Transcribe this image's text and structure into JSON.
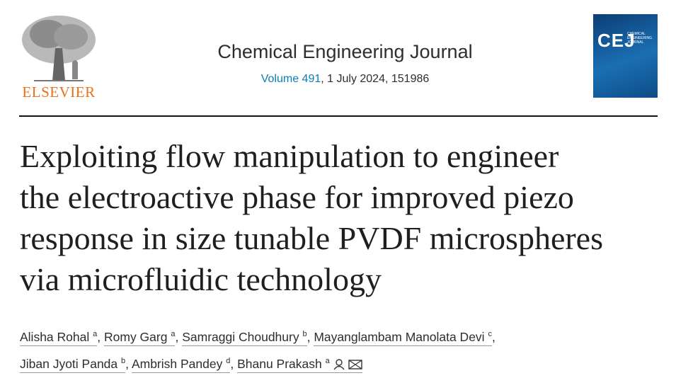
{
  "header": {
    "publisher": "ELSEVIER",
    "journal": "Chemical Engineering Journal",
    "volume": "Volume 491",
    "issue_info": ", 1 July 2024, 151986",
    "cover": {
      "abbr": "CEJ",
      "name": "CHEMICAL ENGINEERING JOURNAL"
    }
  },
  "article": {
    "title_lines": [
      "Exploiting flow manipulation to engineer",
      "the electroactive phase for improved piezo",
      "response in size tunable PVDF microspheres",
      "via microfluidic technology"
    ],
    "separator": ",",
    "author_lines": [
      [
        {
          "name": "Alisha Rohal",
          "affiliation": "a"
        },
        {
          "name": "Romy Garg",
          "affiliation": "a"
        },
        {
          "name": "Samraggi Choudhury",
          "affiliation": "b"
        },
        {
          "name": "Mayanglambam Manolata Devi",
          "affiliation": "c"
        }
      ],
      [
        {
          "name": "Jiban Jyoti Panda",
          "affiliation": "b"
        },
        {
          "name": "Ambrish Pandey",
          "affiliation": "d"
        },
        {
          "name": "Bhanu Prakash",
          "affiliation": "a"
        }
      ]
    ]
  }
}
